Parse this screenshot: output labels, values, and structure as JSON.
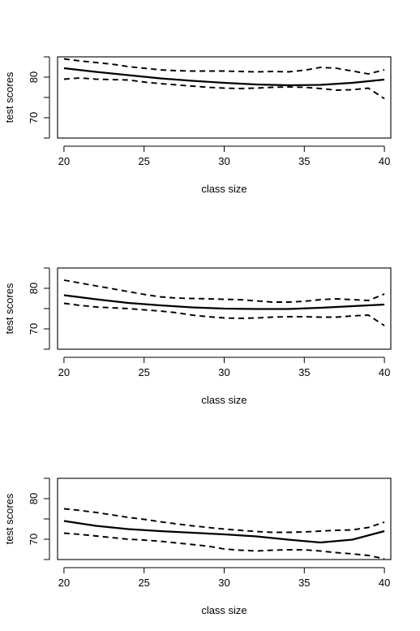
{
  "chart_data": [
    {
      "type": "line",
      "xlabel": "class size",
      "ylabel": "test scores",
      "xlim": [
        19.6,
        40.4
      ],
      "ylim": [
        65,
        85
      ],
      "x_ticks": [
        20,
        25,
        30,
        35,
        40
      ],
      "y_ticks": [
        70,
        80
      ],
      "grid": false,
      "series": [
        {
          "style": "solid",
          "points": [
            [
              20,
              82.2
            ],
            [
              22,
              81.3
            ],
            [
              24,
              80.5
            ],
            [
              26,
              79.7
            ],
            [
              28,
              79.1
            ],
            [
              30,
              78.6
            ],
            [
              32,
              78.2
            ],
            [
              34,
              78.0
            ],
            [
              36,
              78.1
            ],
            [
              38,
              78.6
            ],
            [
              40,
              79.4
            ]
          ]
        },
        {
          "style": "dashed",
          "points": [
            [
              20,
              84.5
            ],
            [
              21,
              84.0
            ],
            [
              22,
              83.6
            ],
            [
              23,
              83.2
            ],
            [
              24,
              82.6
            ],
            [
              25,
              82.2
            ],
            [
              26,
              81.8
            ],
            [
              27,
              81.6
            ],
            [
              28,
              81.5
            ],
            [
              29,
              81.5
            ],
            [
              30,
              81.5
            ],
            [
              31,
              81.4
            ],
            [
              32,
              81.3
            ],
            [
              33,
              81.4
            ],
            [
              34,
              81.3
            ],
            [
              35,
              81.7
            ],
            [
              36,
              82.4
            ],
            [
              37,
              82.2
            ],
            [
              38,
              81.5
            ],
            [
              39,
              80.8
            ],
            [
              40,
              81.8
            ]
          ]
        },
        {
          "style": "dashed",
          "points": [
            [
              20,
              79.5
            ],
            [
              21,
              79.8
            ],
            [
              22,
              79.5
            ],
            [
              23,
              79.4
            ],
            [
              24,
              79.3
            ],
            [
              25,
              78.8
            ],
            [
              26,
              78.4
            ],
            [
              27,
              78.1
            ],
            [
              28,
              77.8
            ],
            [
              29,
              77.5
            ],
            [
              30,
              77.3
            ],
            [
              31,
              77.2
            ],
            [
              32,
              77.3
            ],
            [
              33,
              77.5
            ],
            [
              34,
              77.6
            ],
            [
              35,
              77.5
            ],
            [
              36,
              77.2
            ],
            [
              37,
              76.8
            ],
            [
              38,
              76.9
            ],
            [
              39,
              77.3
            ],
            [
              40,
              74.7
            ]
          ]
        }
      ]
    },
    {
      "type": "line",
      "xlabel": "class size",
      "ylabel": "test scores",
      "xlim": [
        19.6,
        40.4
      ],
      "ylim": [
        65,
        85
      ],
      "x_ticks": [
        20,
        25,
        30,
        35,
        40
      ],
      "y_ticks": [
        70,
        80
      ],
      "grid": false,
      "series": [
        {
          "style": "solid",
          "points": [
            [
              20,
              78.3
            ],
            [
              22,
              77.3
            ],
            [
              24,
              76.4
            ],
            [
              26,
              75.8
            ],
            [
              28,
              75.3
            ],
            [
              30,
              75.0
            ],
            [
              32,
              74.9
            ],
            [
              34,
              74.9
            ],
            [
              36,
              75.2
            ],
            [
              38,
              75.6
            ],
            [
              40,
              76.0
            ]
          ]
        },
        {
          "style": "dashed",
          "points": [
            [
              20,
              82.0
            ],
            [
              21,
              81.3
            ],
            [
              22,
              80.6
            ],
            [
              23,
              79.9
            ],
            [
              24,
              79.2
            ],
            [
              25,
              78.5
            ],
            [
              26,
              77.9
            ],
            [
              27,
              77.6
            ],
            [
              28,
              77.5
            ],
            [
              29,
              77.4
            ],
            [
              30,
              77.3
            ],
            [
              31,
              77.2
            ],
            [
              32,
              76.9
            ],
            [
              33,
              76.6
            ],
            [
              34,
              76.6
            ],
            [
              35,
              76.8
            ],
            [
              36,
              77.2
            ],
            [
              37,
              77.4
            ],
            [
              38,
              77.2
            ],
            [
              39,
              77.0
            ],
            [
              40,
              78.6
            ]
          ]
        },
        {
          "style": "dashed",
          "points": [
            [
              20,
              76.3
            ],
            [
              21,
              75.8
            ],
            [
              22,
              75.4
            ],
            [
              23,
              75.2
            ],
            [
              24,
              75.0
            ],
            [
              25,
              74.7
            ],
            [
              26,
              74.4
            ],
            [
              27,
              74.0
            ],
            [
              28,
              73.4
            ],
            [
              29,
              73.0
            ],
            [
              30,
              72.7
            ],
            [
              31,
              72.6
            ],
            [
              32,
              72.7
            ],
            [
              33,
              72.9
            ],
            [
              34,
              73.0
            ],
            [
              35,
              73.0
            ],
            [
              36,
              72.9
            ],
            [
              37,
              72.9
            ],
            [
              38,
              73.2
            ],
            [
              39,
              73.4
            ],
            [
              40,
              70.8
            ]
          ]
        }
      ]
    },
    {
      "type": "line",
      "xlabel": "class size",
      "ylabel": "test scores",
      "xlim": [
        19.6,
        40.4
      ],
      "ylim": [
        65,
        85
      ],
      "x_ticks": [
        20,
        25,
        30,
        35,
        40
      ],
      "y_ticks": [
        70,
        80
      ],
      "grid": false,
      "series": [
        {
          "style": "solid",
          "points": [
            [
              20,
              74.5
            ],
            [
              22,
              73.3
            ],
            [
              24,
              72.5
            ],
            [
              26,
              72.0
            ],
            [
              28,
              71.6
            ],
            [
              30,
              71.2
            ],
            [
              32,
              70.7
            ],
            [
              34,
              69.9
            ],
            [
              36,
              69.2
            ],
            [
              38,
              69.9
            ],
            [
              40,
              72.0
            ]
          ]
        },
        {
          "style": "dashed",
          "points": [
            [
              20,
              77.5
            ],
            [
              21,
              77.1
            ],
            [
              22,
              76.6
            ],
            [
              23,
              76.0
            ],
            [
              24,
              75.4
            ],
            [
              25,
              74.9
            ],
            [
              26,
              74.3
            ],
            [
              27,
              73.8
            ],
            [
              28,
              73.3
            ],
            [
              29,
              72.9
            ],
            [
              30,
              72.5
            ],
            [
              31,
              72.2
            ],
            [
              32,
              71.9
            ],
            [
              33,
              71.7
            ],
            [
              34,
              71.7
            ],
            [
              35,
              71.8
            ],
            [
              36,
              72.0
            ],
            [
              37,
              72.2
            ],
            [
              38,
              72.3
            ],
            [
              39,
              72.9
            ],
            [
              40,
              74.2
            ]
          ]
        },
        {
          "style": "dashed",
          "points": [
            [
              20,
              71.5
            ],
            [
              21,
              71.2
            ],
            [
              22,
              70.8
            ],
            [
              23,
              70.4
            ],
            [
              24,
              70.0
            ],
            [
              25,
              69.8
            ],
            [
              26,
              69.5
            ],
            [
              27,
              69.1
            ],
            [
              28,
              68.7
            ],
            [
              29,
              68.3
            ],
            [
              30,
              67.6
            ],
            [
              31,
              67.3
            ],
            [
              32,
              67.1
            ],
            [
              33,
              67.3
            ],
            [
              34,
              67.4
            ],
            [
              35,
              67.4
            ],
            [
              36,
              67.1
            ],
            [
              37,
              66.7
            ],
            [
              38,
              66.4
            ],
            [
              39,
              66.0
            ],
            [
              40,
              65.2
            ]
          ]
        }
      ]
    }
  ]
}
